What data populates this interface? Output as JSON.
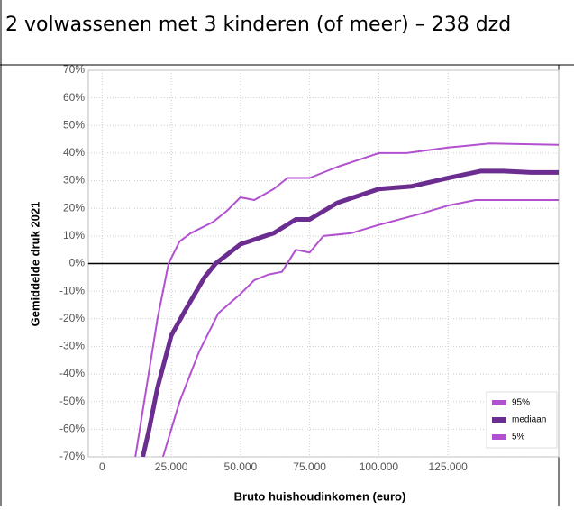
{
  "chart_data": {
    "type": "line",
    "title": "2 volwassenen met 3 kinderen (of meer) – 238 dzd",
    "xlabel": "Bruto huishoudinkomen (euro)",
    "ylabel": "Gemiddelde druk 2021",
    "xlim": [
      -5000,
      165000
    ],
    "ylim": [
      -70,
      70
    ],
    "xticks": [
      0,
      {
        "value": 25000,
        "label": "25.000"
      },
      {
        "value": 50000,
        "label": "50.000"
      },
      {
        "value": 75000,
        "label": "75.000"
      },
      {
        "value": 100000,
        "label": "100.000"
      },
      {
        "value": 125000,
        "label": "125.000"
      }
    ],
    "yticks": [
      {
        "value": -70,
        "label": "-70%"
      },
      {
        "value": -60,
        "label": "-60%"
      },
      {
        "value": -50,
        "label": "-50%"
      },
      {
        "value": -40,
        "label": "-40%"
      },
      {
        "value": -30,
        "label": "-30%"
      },
      {
        "value": -20,
        "label": "-20%"
      },
      {
        "value": -10,
        "label": "-10%"
      },
      {
        "value": 0,
        "label": "0%"
      },
      {
        "value": 10,
        "label": "10%"
      },
      {
        "value": 20,
        "label": "20%"
      },
      {
        "value": 30,
        "label": "30%"
      },
      {
        "value": 40,
        "label": "40%"
      },
      {
        "value": 50,
        "label": "50%"
      },
      {
        "value": 60,
        "label": "60%"
      },
      {
        "value": 70,
        "label": "70%"
      }
    ],
    "grid": true,
    "legend": "lower right",
    "series": [
      {
        "name": "95%",
        "color": "#b251d0",
        "width": 2,
        "x": [
          12000,
          16000,
          20000,
          24000,
          28000,
          32000,
          40000,
          45000,
          50000,
          55000,
          62000,
          67000,
          75000,
          85000,
          100000,
          110000,
          125000,
          140000,
          165000
        ],
        "values": [
          -70,
          -45,
          -20,
          0,
          8,
          11,
          15,
          19,
          24,
          23,
          27,
          31,
          31,
          35,
          40,
          40,
          42,
          43.5,
          43
        ]
      },
      {
        "name": "mediaan",
        "color": "#6b2d8f",
        "width": 5,
        "x": [
          14700,
          17000,
          20000,
          25000,
          30000,
          37000,
          41000,
          50000,
          62000,
          70000,
          75000,
          85000,
          100000,
          112000,
          125000,
          137000,
          145000,
          155000,
          165000
        ],
        "values": [
          -70,
          -60,
          -45,
          -26,
          -17,
          -5,
          0,
          7,
          11,
          16,
          16,
          22,
          27,
          28,
          31,
          33.5,
          33.5,
          33,
          33
        ]
      },
      {
        "name": "5%",
        "color": "#b251d0",
        "width": 2,
        "x": [
          22000,
          28000,
          35000,
          42000,
          50000,
          55000,
          60000,
          65000,
          70000,
          75000,
          80000,
          90000,
          100000,
          115000,
          125000,
          135000,
          165000
        ],
        "values": [
          -70,
          -50,
          -32,
          -18,
          -11,
          -6,
          -4,
          -3,
          5,
          4,
          10,
          11,
          14,
          18,
          21,
          23,
          23
        ]
      }
    ]
  }
}
